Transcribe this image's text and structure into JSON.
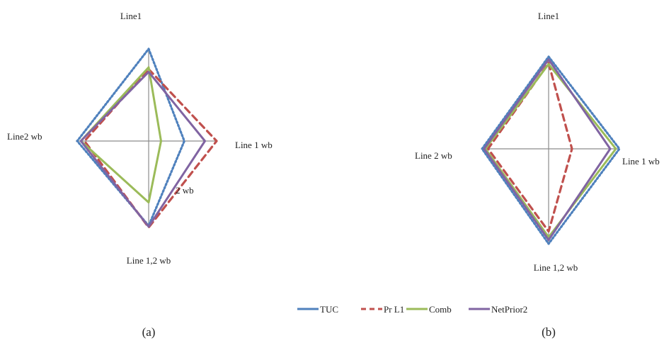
{
  "chart_data": [
    {
      "type": "radar",
      "panel_label": "(a)",
      "axes": [
        "Line1",
        "Line 1 wb",
        "Line 1,2  wb",
        "Line2 wb"
      ],
      "axis_overlap_label": "2 wb",
      "series": [
        {
          "name": "TUC",
          "color": "#4f81bd",
          "dash": "dotted",
          "values": [
            1.0,
            0.52,
            0.98,
            0.98
          ]
        },
        {
          "name": "Pr L1",
          "color": "#c0504d",
          "dash": "dashed",
          "values": [
            0.78,
            0.99,
            1.0,
            0.88
          ]
        },
        {
          "name": "Comb",
          "color": "#9bbb59",
          "dash": "solid",
          "values": [
            0.8,
            0.18,
            0.71,
            0.93
          ]
        },
        {
          "name": "NetPrior2",
          "color": "#8064a2",
          "dash": "solid",
          "values": [
            0.75,
            0.82,
            0.99,
            0.93
          ]
        }
      ]
    },
    {
      "type": "radar",
      "panel_label": "(b)",
      "axes": [
        "Line1",
        "Line 1 wb",
        "Line 1,2  wb",
        "Line 2 wb"
      ],
      "series": [
        {
          "name": "TUC",
          "color": "#4f81bd",
          "dash": "dotted",
          "values": [
            1.0,
            1.0,
            1.0,
            1.0
          ]
        },
        {
          "name": "Pr L1",
          "color": "#c0504d",
          "dash": "dashed",
          "values": [
            0.93,
            0.33,
            0.87,
            0.91
          ]
        },
        {
          "name": "Comb",
          "color": "#9bbb59",
          "dash": "solid",
          "values": [
            0.92,
            0.95,
            0.93,
            0.95
          ]
        },
        {
          "name": "NetPrior2",
          "color": "#8064a2",
          "dash": "solid",
          "values": [
            0.97,
            0.87,
            0.96,
            0.97
          ]
        }
      ]
    }
  ],
  "legend": [
    "TUC",
    "Pr L1",
    "Comb",
    "NetPrior2"
  ]
}
